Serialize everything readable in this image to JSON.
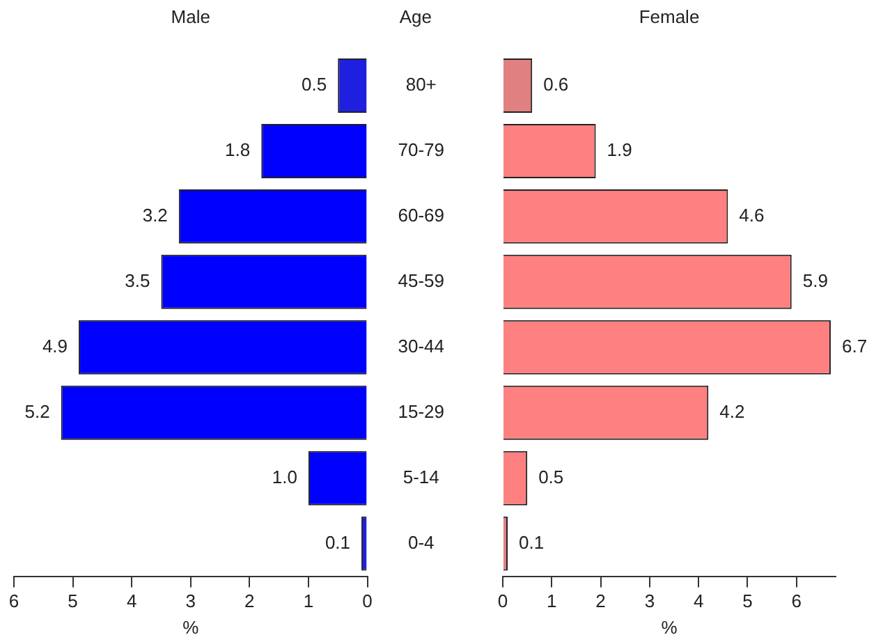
{
  "chart_data": [
    {
      "type": "bar",
      "orientation": "horizontal",
      "title": "Male",
      "xlabel": "%",
      "ylabel": "Age",
      "categories": [
        "80+",
        "70-79",
        "60-69",
        "45-59",
        "30-44",
        "15-29",
        "5-14",
        "0-4"
      ],
      "values": [
        0.5,
        1.8,
        3.2,
        3.5,
        4.9,
        5.2,
        1.0,
        0.1
      ],
      "value_labels": [
        "0.5",
        "1.8",
        "3.2",
        "3.5",
        "4.9",
        "5.2",
        "1.0",
        "0.1"
      ],
      "colors": [
        "#1f1fe0",
        "#0000ff",
        "#0000ff",
        "#0000ff",
        "#0000ff",
        "#0000ff",
        "#0000ff",
        "#1f1fe0"
      ],
      "xlim": [
        6,
        0
      ],
      "xticks": [
        6,
        5,
        4,
        3,
        2,
        1,
        0
      ]
    },
    {
      "type": "bar",
      "orientation": "horizontal",
      "title": "Female",
      "xlabel": "%",
      "categories": [
        null,
        null,
        null,
        null,
        null,
        null,
        null,
        null
      ],
      "tick_labels": "x",
      "values": [
        0.6,
        1.9,
        4.6,
        5.9,
        6.7,
        4.2,
        0.5,
        0.1
      ],
      "value_labels": [
        "0.6",
        "1.9",
        "4.6",
        "5.9",
        "6.7",
        "4.2",
        "0.5",
        "0.1"
      ],
      "colors": [
        "#e08080",
        "#ff8080",
        "#ff8080",
        "#ff8080",
        "#ff8080",
        "#ff8080",
        "#ff8080",
        "#e08080"
      ],
      "xlim": [
        0,
        6.8
      ],
      "xticks": [
        0,
        1,
        2,
        3,
        4,
        5,
        6
      ]
    }
  ]
}
